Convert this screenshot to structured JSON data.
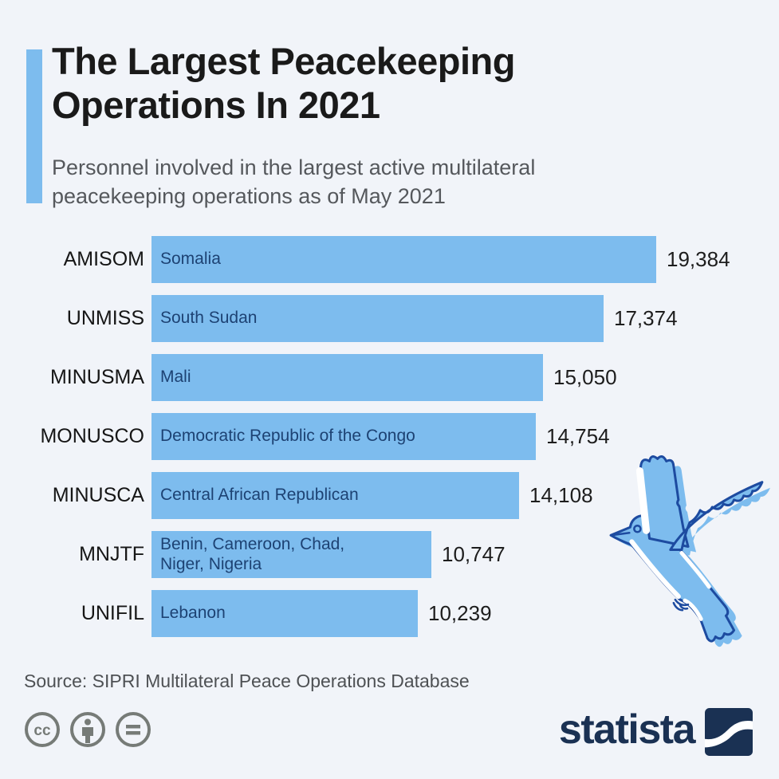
{
  "header": {
    "title_lines": [
      "The Largest Peacekeeping",
      "Operations In 2021"
    ],
    "subtitle_lines": [
      "Personnel involved in the largest active multilateral",
      "peacekeeping operations as of May 2021"
    ],
    "accent_color": "#7dbcee"
  },
  "chart_data": {
    "type": "bar",
    "orientation": "horizontal",
    "title": "The Largest Peacekeeping Operations In 2021",
    "subtitle": "Personnel involved in the largest active multilateral peacekeeping operations as of May 2021",
    "unit": "personnel",
    "categories": [
      "AMISOM",
      "UNMISS",
      "MINUSMA",
      "MONUSCO",
      "MINUSCA",
      "MNJTF",
      "UNIFIL"
    ],
    "values": [
      19384,
      17374,
      15050,
      14754,
      14108,
      10747,
      10239
    ],
    "xlim": [
      0,
      19384
    ],
    "grid": false,
    "legend": false,
    "bar_color": "#7dbcee",
    "bar_text_color": "#1d4273",
    "rows": [
      {
        "operation": "AMISOM",
        "region": "Somalia",
        "value": 19384,
        "value_label": "19,384"
      },
      {
        "operation": "UNMISS",
        "region": "South Sudan",
        "value": 17374,
        "value_label": "17,374"
      },
      {
        "operation": "MINUSMA",
        "region": "Mali",
        "value": 15050,
        "value_label": "15,050"
      },
      {
        "operation": "MONUSCO",
        "region": "Democratic Republic of the Congo",
        "value": 14754,
        "value_label": "14,754"
      },
      {
        "operation": "MINUSCA",
        "region": "Central African Republican",
        "value": 14108,
        "value_label": "14,108"
      },
      {
        "operation": "MNJTF",
        "region": "Benin, Cameroon, Chad,\nNiger, Nigeria",
        "value": 10747,
        "value_label": "10,747"
      },
      {
        "operation": "UNIFIL",
        "region": "Lebanon",
        "value": 10239,
        "value_label": "10,239"
      }
    ]
  },
  "footer": {
    "source": "Source: SIPRI Multilateral Peace Operations Database",
    "license_icons": [
      "creative-commons",
      "attribution",
      "no-derivatives"
    ],
    "brand": "statista",
    "brand_color": "#1a3153",
    "icon_color": "#767b77"
  }
}
